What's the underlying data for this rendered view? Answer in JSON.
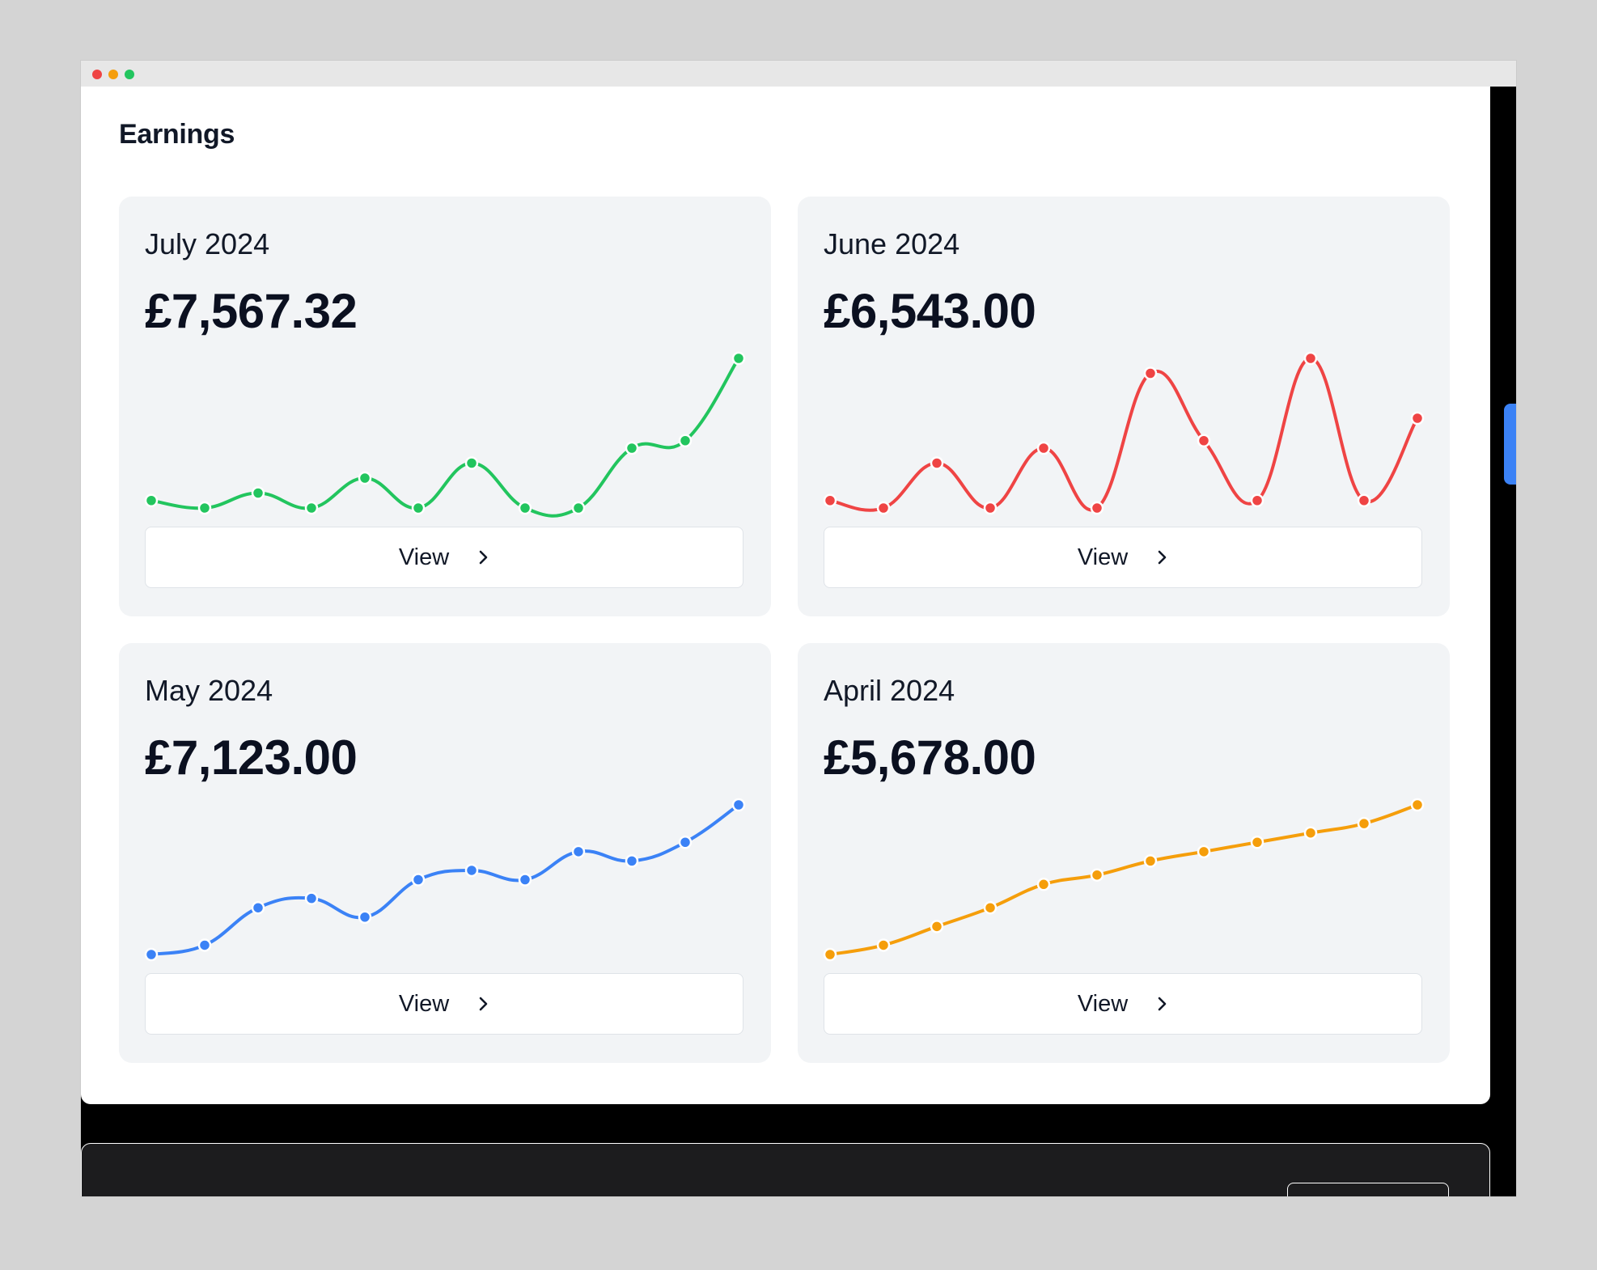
{
  "window": {
    "traffic_lights": [
      "close",
      "minimize",
      "maximize"
    ]
  },
  "page": {
    "title": "Earnings"
  },
  "cards": [
    {
      "month": "July 2024",
      "amount": "£7,567.32",
      "color": "#22c55e",
      "button_label": "View",
      "button_icon": "chevron-right-icon"
    },
    {
      "month": "June 2024",
      "amount": "£6,543.00",
      "color": "#ef4444",
      "button_label": "View",
      "button_icon": "chevron-right-icon"
    },
    {
      "month": "May 2024",
      "amount": "£7,123.00",
      "color": "#3b82f6",
      "button_label": "View",
      "button_icon": "chevron-right-icon"
    },
    {
      "month": "April 2024",
      "amount": "£5,678.00",
      "color": "#f59e0b",
      "button_label": "View",
      "button_icon": "chevron-right-icon"
    }
  ],
  "chart_data": [
    {
      "type": "line",
      "x": [
        1,
        2,
        3,
        4,
        5,
        6,
        7,
        8,
        9,
        10,
        11,
        12
      ],
      "values": [
        13,
        12,
        14,
        12,
        16,
        12,
        18,
        12,
        12,
        20,
        21,
        32
      ],
      "ylim": [
        0,
        32
      ],
      "color": "#22c55e"
    },
    {
      "type": "line",
      "x": [
        1,
        2,
        3,
        4,
        5,
        6,
        7,
        8,
        9,
        10,
        11,
        12
      ],
      "values": [
        13,
        12,
        18,
        12,
        20,
        12,
        30,
        21,
        13,
        32,
        13,
        24
      ],
      "ylim": [
        0,
        32
      ],
      "color": "#ef4444"
    },
    {
      "type": "line",
      "x": [
        1,
        2,
        3,
        4,
        5,
        6,
        7,
        8,
        9,
        10,
        11,
        12
      ],
      "values": [
        12,
        13,
        17,
        18,
        16,
        20,
        21,
        20,
        23,
        22,
        24,
        28
      ],
      "ylim": [
        0,
        28
      ],
      "color": "#3b82f6"
    },
    {
      "type": "line",
      "x": [
        1,
        2,
        3,
        4,
        5,
        6,
        7,
        8,
        9,
        10,
        11,
        12
      ],
      "values": [
        12,
        13,
        15,
        17,
        19.5,
        20.5,
        22,
        23,
        24,
        25,
        26,
        28
      ],
      "ylim": [
        0,
        28
      ],
      "color": "#f59e0b"
    }
  ],
  "colors": {
    "accent": "#3b82f6",
    "panel_bg": "#ffffff",
    "card_bg": "#f2f4f6"
  }
}
